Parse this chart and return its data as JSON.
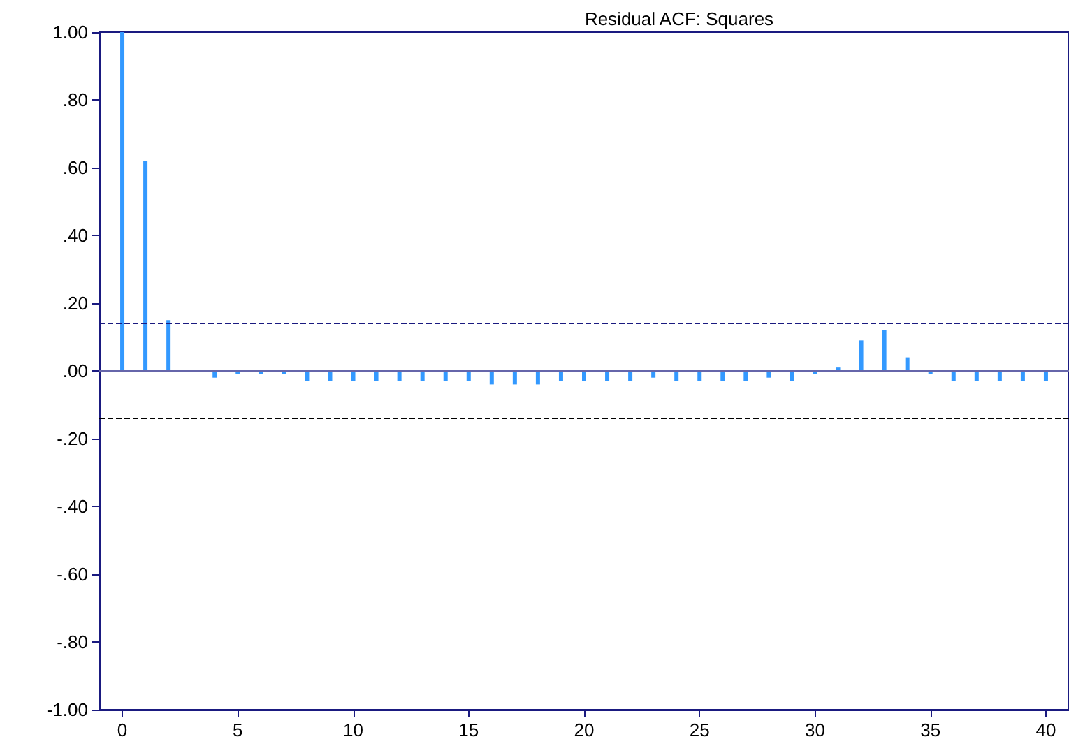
{
  "chart_data": {
    "type": "bar",
    "title": "Residual ACF: Squares",
    "x": [
      0,
      1,
      2,
      3,
      4,
      5,
      6,
      7,
      8,
      9,
      10,
      11,
      12,
      13,
      14,
      15,
      16,
      17,
      18,
      19,
      20,
      21,
      22,
      23,
      24,
      25,
      26,
      27,
      28,
      29,
      30,
      31,
      32,
      33,
      34,
      35,
      36,
      37,
      38,
      39,
      40
    ],
    "series": [
      {
        "color": "#3399ff",
        "values": [
          1.0,
          0.62,
          0.15,
          0,
          -0.02,
          -0.01,
          -0.01,
          -0.01,
          -0.03,
          -0.03,
          -0.03,
          -0.03,
          -0.03,
          -0.03,
          -0.03,
          -0.03,
          -0.04,
          -0.04,
          -0.04,
          -0.03,
          -0.03,
          -0.03,
          -0.03,
          -0.02,
          -0.03,
          -0.03,
          -0.03,
          -0.03,
          -0.02,
          -0.03,
          -0.01,
          0.01,
          0.09,
          0.12,
          0.04,
          -0.01,
          -0.03,
          -0.03,
          -0.03,
          -0.03,
          -0.03
        ]
      }
    ],
    "xlim": [
      -1,
      41
    ],
    "xticks": [
      0,
      5,
      10,
      15,
      20,
      25,
      30,
      35,
      40
    ],
    "ylim": [
      -1,
      1
    ],
    "yticks": [
      {
        "value": -1,
        "label": "-1.00"
      },
      {
        "value": -0.8,
        "label": "-.80"
      },
      {
        "value": -0.6,
        "label": "-.60"
      },
      {
        "value": -0.4,
        "label": "-.40"
      },
      {
        "value": -0.2,
        "label": "-.20"
      },
      {
        "value": 0,
        "label": ".00"
      },
      {
        "value": 0.2,
        "label": ".20"
      },
      {
        "value": 0.4,
        "label": ".40"
      },
      {
        "value": 0.6,
        "label": ".60"
      },
      {
        "value": 0.8,
        "label": ".80"
      },
      {
        "value": 1,
        "label": "1.00"
      }
    ],
    "ref_lines": [
      {
        "axis": "y",
        "value": 0.14,
        "color": "#1a1a80",
        "line_style": "dashed"
      },
      {
        "axis": "y",
        "value": -0.14,
        "color": "#000000",
        "line_style": "dashed"
      },
      {
        "axis": "y",
        "value": 0,
        "color": "#6666aa",
        "line_style": "solid"
      }
    ],
    "grid": false
  }
}
